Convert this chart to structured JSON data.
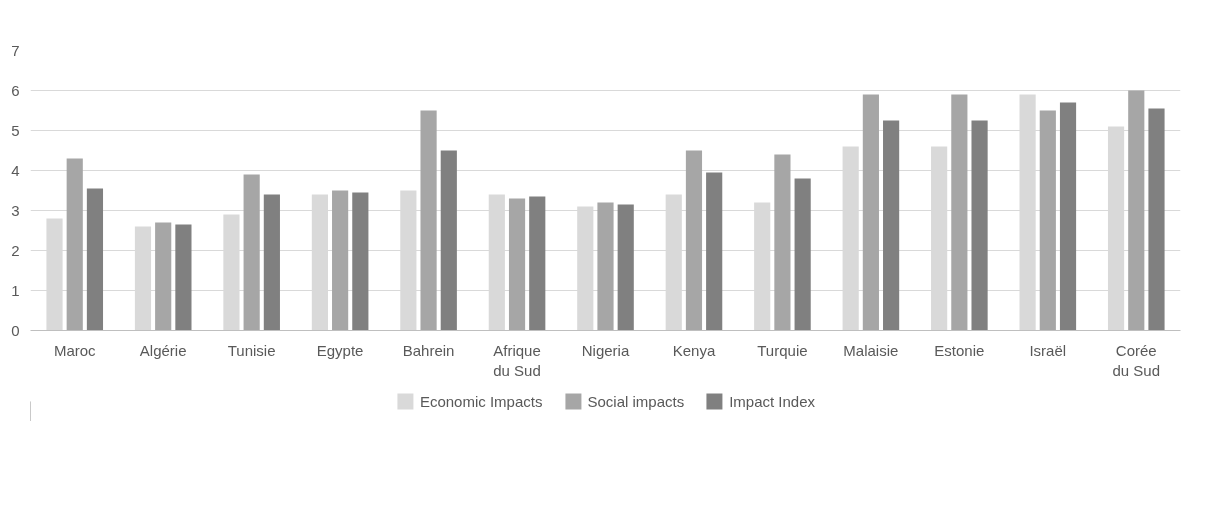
{
  "chart_data": {
    "type": "bar",
    "categories": [
      "Maroc",
      "Algérie",
      "Tunisie",
      "Egypte",
      "Bahrein",
      "Afrique du Sud",
      "Nigeria",
      "Kenya",
      "Turquie",
      "Malaisie",
      "Estonie",
      "Israël",
      "Corée du Sud"
    ],
    "series": [
      {
        "name": "Economic Impacts",
        "color": "#d9d9d9",
        "values": [
          2.8,
          2.6,
          2.9,
          3.4,
          3.5,
          3.4,
          3.1,
          3.4,
          3.2,
          4.6,
          4.6,
          5.9,
          5.1
        ]
      },
      {
        "name": "Social impacts",
        "color": "#a6a6a6",
        "values": [
          4.3,
          2.7,
          3.9,
          3.5,
          5.5,
          3.3,
          3.2,
          4.5,
          4.4,
          5.9,
          5.9,
          5.5,
          6.0
        ]
      },
      {
        "name": "Impact Index",
        "color": "#808080",
        "values": [
          3.55,
          2.65,
          3.4,
          3.45,
          4.5,
          3.35,
          3.15,
          3.95,
          3.8,
          5.25,
          5.25,
          5.7,
          5.55
        ]
      }
    ],
    "ylim": [
      0,
      7
    ],
    "yticks": [
      0,
      1,
      2,
      3,
      4,
      5,
      6,
      7
    ],
    "grid": "y",
    "legend": "bottom"
  }
}
